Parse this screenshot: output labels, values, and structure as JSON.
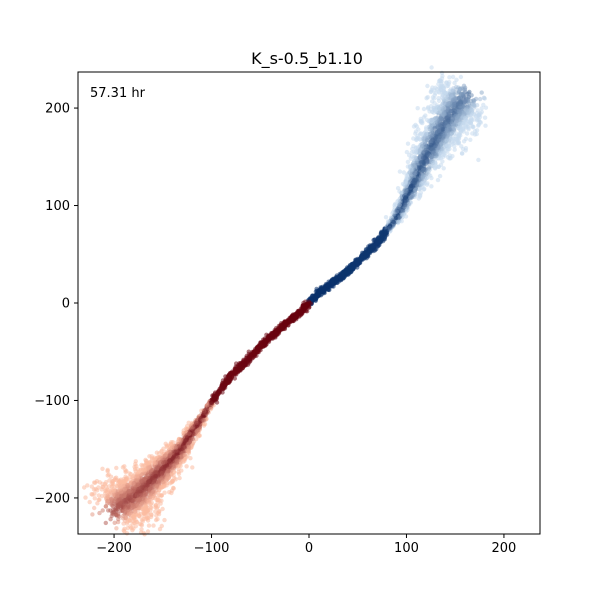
{
  "chart_data": {
    "type": "scatter",
    "title": "K_s-0.5_b1.10",
    "annotation": "57.31 hr",
    "xlabel": "",
    "ylabel": "",
    "xlim": [
      -237,
      237
    ],
    "ylim": [
      -237,
      237
    ],
    "xticks": [
      -200,
      -100,
      0,
      100,
      200
    ],
    "yticks": [
      -200,
      -100,
      0,
      100,
      200
    ],
    "xtick_labels": [
      "−200",
      "−100",
      "0",
      "100",
      "200"
    ],
    "ytick_labels": [
      "−200",
      "−100",
      "0",
      "100",
      "200"
    ],
    "grid": false,
    "legend": "none",
    "series": [
      {
        "colormap": "Blues",
        "light_color": "#c6dbef",
        "dark_color": "#08306b",
        "x": [
          0,
          10,
          20,
          30,
          40,
          50,
          60,
          70,
          80,
          90,
          100,
          110,
          120,
          130,
          140,
          150,
          160
        ],
        "y": [
          0,
          10,
          18,
          25,
          33,
          42,
          52,
          62,
          75,
          88,
          108,
          128,
          150,
          168,
          185,
          200,
          212
        ]
      },
      {
        "colormap": "Reds",
        "light_color": "#fcbba1",
        "dark_color": "#67000d",
        "x": [
          0,
          -10,
          -20,
          -30,
          -40,
          -50,
          -60,
          -70,
          -80,
          -90,
          -100,
          -110,
          -120,
          -130,
          -140,
          -150,
          -160,
          -170,
          -180,
          -190,
          -200
        ],
        "y": [
          0,
          -10,
          -18,
          -27,
          -35,
          -45,
          -55,
          -65,
          -75,
          -88,
          -102,
          -118,
          -133,
          -148,
          -160,
          -170,
          -180,
          -190,
          -198,
          -205,
          -212
        ]
      }
    ]
  }
}
